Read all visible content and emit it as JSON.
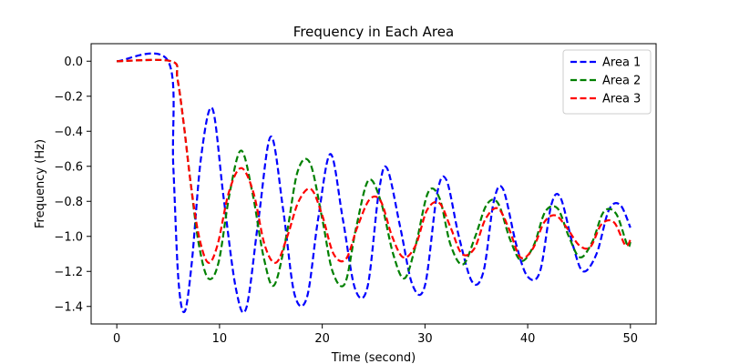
{
  "chart_data": {
    "type": "line",
    "title": "Frequency in Each Area",
    "xlabel": "Time (second)",
    "ylabel": "Frequency (Hz)",
    "xlim": [
      -2.5,
      52.5
    ],
    "ylim": [
      -1.5,
      0.1
    ],
    "xticks": [
      0,
      10,
      20,
      30,
      40,
      50
    ],
    "xtick_labels": [
      "0",
      "10",
      "20",
      "30",
      "40",
      "50"
    ],
    "yticks": [
      0.0,
      -0.2,
      -0.4,
      -0.6,
      -0.8,
      -1.0,
      -1.2,
      -1.4
    ],
    "ytick_labels": [
      "0.0",
      "−0.2",
      "−0.4",
      "−0.6",
      "−0.8",
      "−1.0",
      "−1.2",
      "−1.4"
    ],
    "grid": false,
    "legend_position": "top-right",
    "line_style": "dashed",
    "series": [
      {
        "name": "Area 1",
        "color": "#0000ff",
        "x": [
          0,
          5,
          5.5,
          6.0,
          6.6,
          7.3,
          8.2,
          9.3,
          10.4,
          11.6,
          12.6,
          13.8,
          15.0,
          16.2,
          17.3,
          18.5,
          19.6,
          20.8,
          22.0,
          23.2,
          24.4,
          25.5,
          26.3,
          27.6,
          28.8,
          30.0,
          31.2,
          32.1,
          33.3,
          34.6,
          35.7,
          36.7,
          37.6,
          38.9,
          40.0,
          41.2,
          42.3,
          43.2,
          44.4,
          45.4,
          46.7,
          47.9,
          49.0,
          50.0
        ],
        "y": [
          0,
          0,
          -0.6,
          -1.25,
          -1.43,
          -1.15,
          -0.55,
          -0.27,
          -0.78,
          -1.3,
          -1.41,
          -0.9,
          -0.43,
          -0.85,
          -1.33,
          -1.35,
          -0.9,
          -0.53,
          -0.9,
          -1.3,
          -1.29,
          -0.75,
          -0.61,
          -0.95,
          -1.28,
          -1.28,
          -0.75,
          -0.68,
          -1.0,
          -1.26,
          -1.2,
          -0.8,
          -0.73,
          -1.05,
          -1.23,
          -1.2,
          -0.82,
          -0.78,
          -1.05,
          -1.2,
          -1.1,
          -0.85,
          -0.82,
          -0.95
        ]
      },
      {
        "name": "Area 2",
        "color": "#008000",
        "x": [
          0,
          5.3,
          5.9,
          6.5,
          7.2,
          8.0,
          8.9,
          9.9,
          11.0,
          12.1,
          13.2,
          14.3,
          15.3,
          16.5,
          17.6,
          18.8,
          20.0,
          21.0,
          22.2,
          23.3,
          24.5,
          25.7,
          26.9,
          28.0,
          29.1,
          30.3,
          31.4,
          32.5,
          33.7,
          34.9,
          36.0,
          37.1,
          38.3,
          39.4,
          40.6,
          41.7,
          42.9,
          44.0,
          45.1,
          46.3,
          47.4,
          48.6,
          49.7,
          50.0
        ],
        "y": [
          0,
          0,
          -0.1,
          -0.35,
          -0.7,
          -1.05,
          -1.24,
          -1.15,
          -0.75,
          -0.51,
          -0.75,
          -1.12,
          -1.28,
          -1.0,
          -0.63,
          -0.58,
          -0.9,
          -1.2,
          -1.27,
          -0.95,
          -0.68,
          -0.8,
          -1.1,
          -1.24,
          -1.05,
          -0.75,
          -0.78,
          -1.05,
          -1.16,
          -1.0,
          -0.82,
          -0.81,
          -1.02,
          -1.14,
          -1.05,
          -0.86,
          -0.84,
          -1.0,
          -1.12,
          -1.03,
          -0.86,
          -0.87,
          -1.05,
          -1.03
        ]
      },
      {
        "name": "Area 3",
        "color": "#ff0000",
        "x": [
          0,
          5.3,
          5.9,
          6.5,
          7.2,
          8.0,
          8.9,
          9.8,
          10.9,
          12.1,
          13.3,
          14.4,
          15.5,
          16.6,
          17.7,
          18.9,
          20.0,
          21.1,
          22.3,
          23.4,
          24.6,
          25.7,
          26.8,
          27.9,
          29.1,
          30.2,
          31.4,
          32.5,
          33.6,
          34.8,
          35.9,
          37.1,
          38.2,
          39.3,
          40.5,
          41.6,
          42.7,
          43.8,
          45.0,
          46.1,
          47.2,
          48.4,
          49.5,
          50.0
        ],
        "y": [
          0,
          0,
          -0.1,
          -0.35,
          -0.7,
          -1.0,
          -1.15,
          -1.05,
          -0.75,
          -0.61,
          -0.75,
          -1.05,
          -1.15,
          -1.0,
          -0.8,
          -0.73,
          -0.88,
          -1.1,
          -1.13,
          -0.95,
          -0.79,
          -0.8,
          -1.0,
          -1.12,
          -1.05,
          -0.85,
          -0.81,
          -0.95,
          -1.1,
          -1.07,
          -0.9,
          -0.84,
          -0.96,
          -1.12,
          -1.07,
          -0.92,
          -0.88,
          -0.95,
          -1.05,
          -1.06,
          -0.93,
          -0.92,
          -1.05,
          -1.02
        ]
      }
    ]
  }
}
